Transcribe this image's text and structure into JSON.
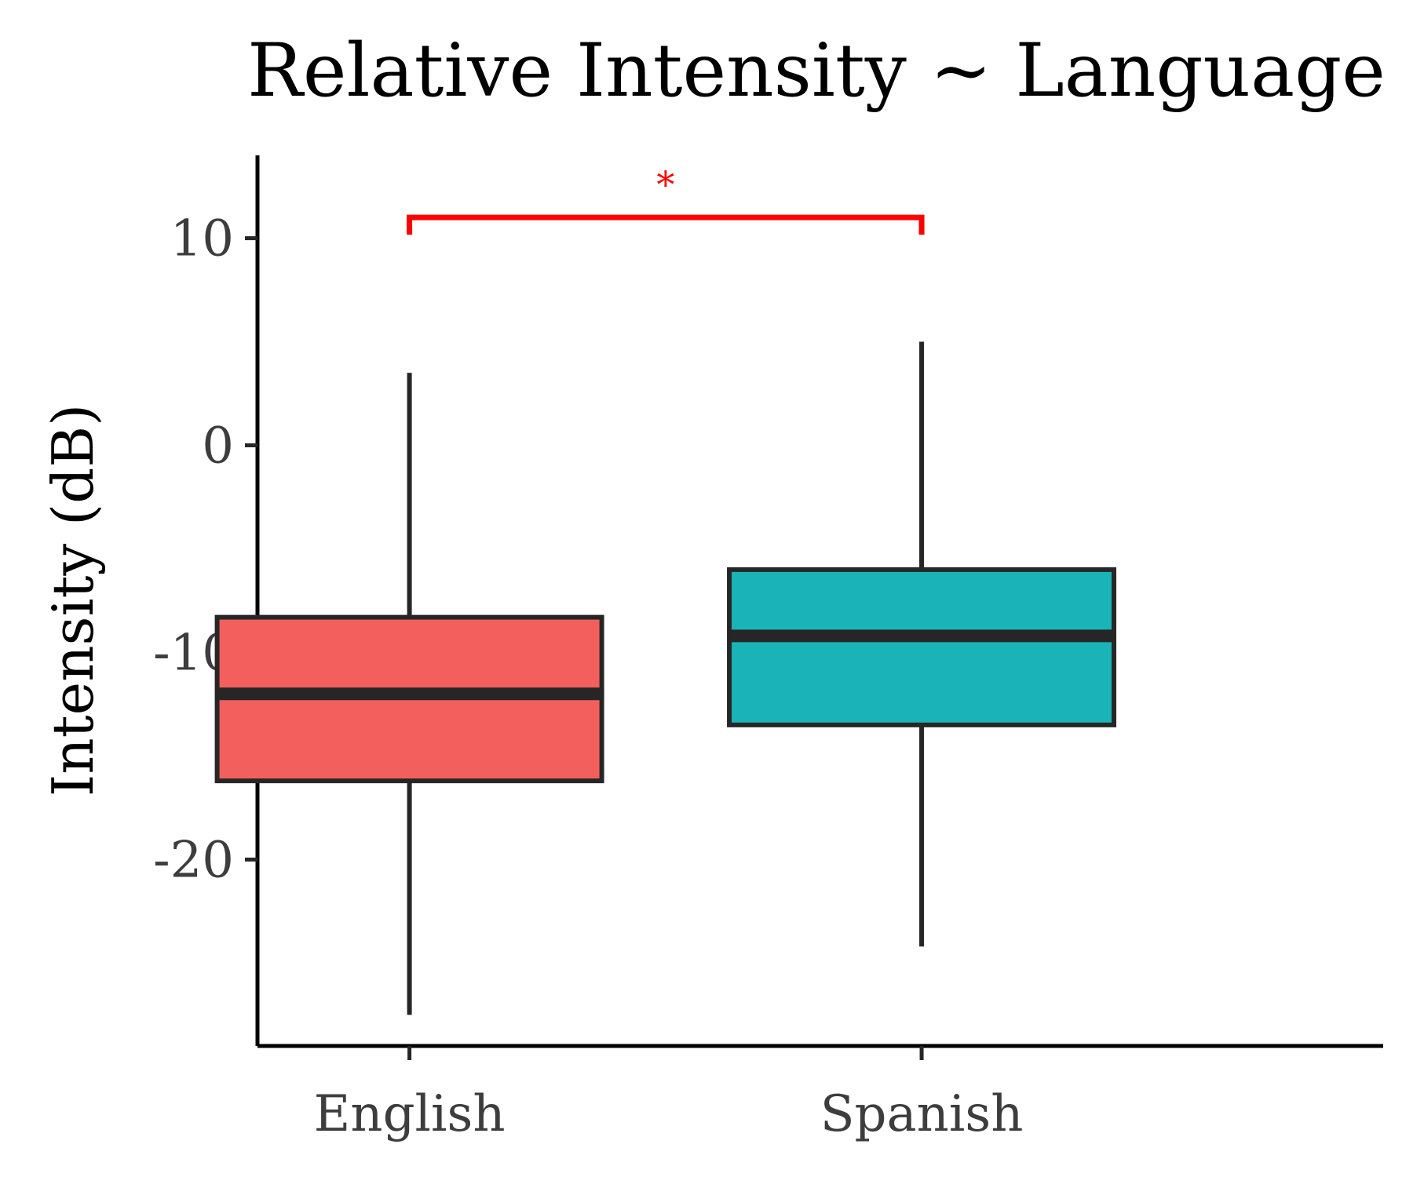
{
  "chart_data": {
    "type": "box",
    "title": "Relative Intensity ~ Language",
    "xlabel": "",
    "ylabel": "Intensity (dB)",
    "ylim": [
      -29,
      14
    ],
    "yticks": [
      10,
      0,
      -10,
      -20
    ],
    "categories": [
      "English",
      "Spanish"
    ],
    "boxes": [
      {
        "category": "English",
        "whisker_low": -27.5,
        "q1": -16.2,
        "median": -12.0,
        "q3": -8.3,
        "whisker_high": 3.5,
        "color": "#F25F5C"
      },
      {
        "category": "Spanish",
        "whisker_low": -24.2,
        "q1": -13.5,
        "median": -9.2,
        "q3": -6.0,
        "whisker_high": 5.0,
        "color": "#1AB4B8"
      }
    ],
    "significance": {
      "from": "English",
      "to": "Spanish",
      "label": "*",
      "y": 11.0,
      "color": "#FF0000"
    },
    "grid": false,
    "legend": "none"
  }
}
